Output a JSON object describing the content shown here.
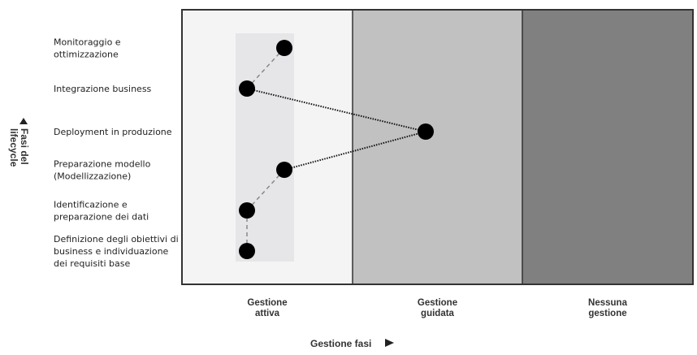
{
  "y_axis": {
    "label_line1": "Fasi del",
    "label_line2": "lifecycle",
    "arrow": "triangle-up-icon"
  },
  "x_axis": {
    "label": "Gestione fasi",
    "arrow": "triangle-right-icon"
  },
  "phases": [
    {
      "lines": [
        "Monitoraggio e",
        "ottimizzazione"
      ]
    },
    {
      "lines": [
        "Integrazione business"
      ]
    },
    {
      "lines": [
        "Deployment in produzione"
      ]
    },
    {
      "lines": [
        "Preparazione modello",
        "(Modellizzazione)"
      ]
    },
    {
      "lines": [
        "Identificazione e",
        "preparazione dei dati"
      ]
    },
    {
      "lines": [
        "Definizione degli obiettivi di",
        "business e individuazione",
        "dei requisiti base"
      ]
    }
  ],
  "columns": [
    {
      "lines": [
        "Gestione",
        "attiva"
      ],
      "color": "#f4f4f4"
    },
    {
      "lines": [
        "Gestione",
        "guidata"
      ],
      "color": "#c1c1c1"
    },
    {
      "lines": [
        "Nessuna",
        "gestione"
      ],
      "color": "#808080"
    }
  ],
  "highlight_color": "#e6e6e8",
  "points": [
    {
      "phase": 0,
      "column": "Gestione attiva"
    },
    {
      "phase": 1,
      "column": "Gestione attiva"
    },
    {
      "phase": 2,
      "column": "Gestione guidata"
    },
    {
      "phase": 3,
      "column": "Gestione attiva"
    },
    {
      "phase": 4,
      "column": "Gestione attiva"
    },
    {
      "phase": 5,
      "column": "Gestione attiva"
    }
  ]
}
